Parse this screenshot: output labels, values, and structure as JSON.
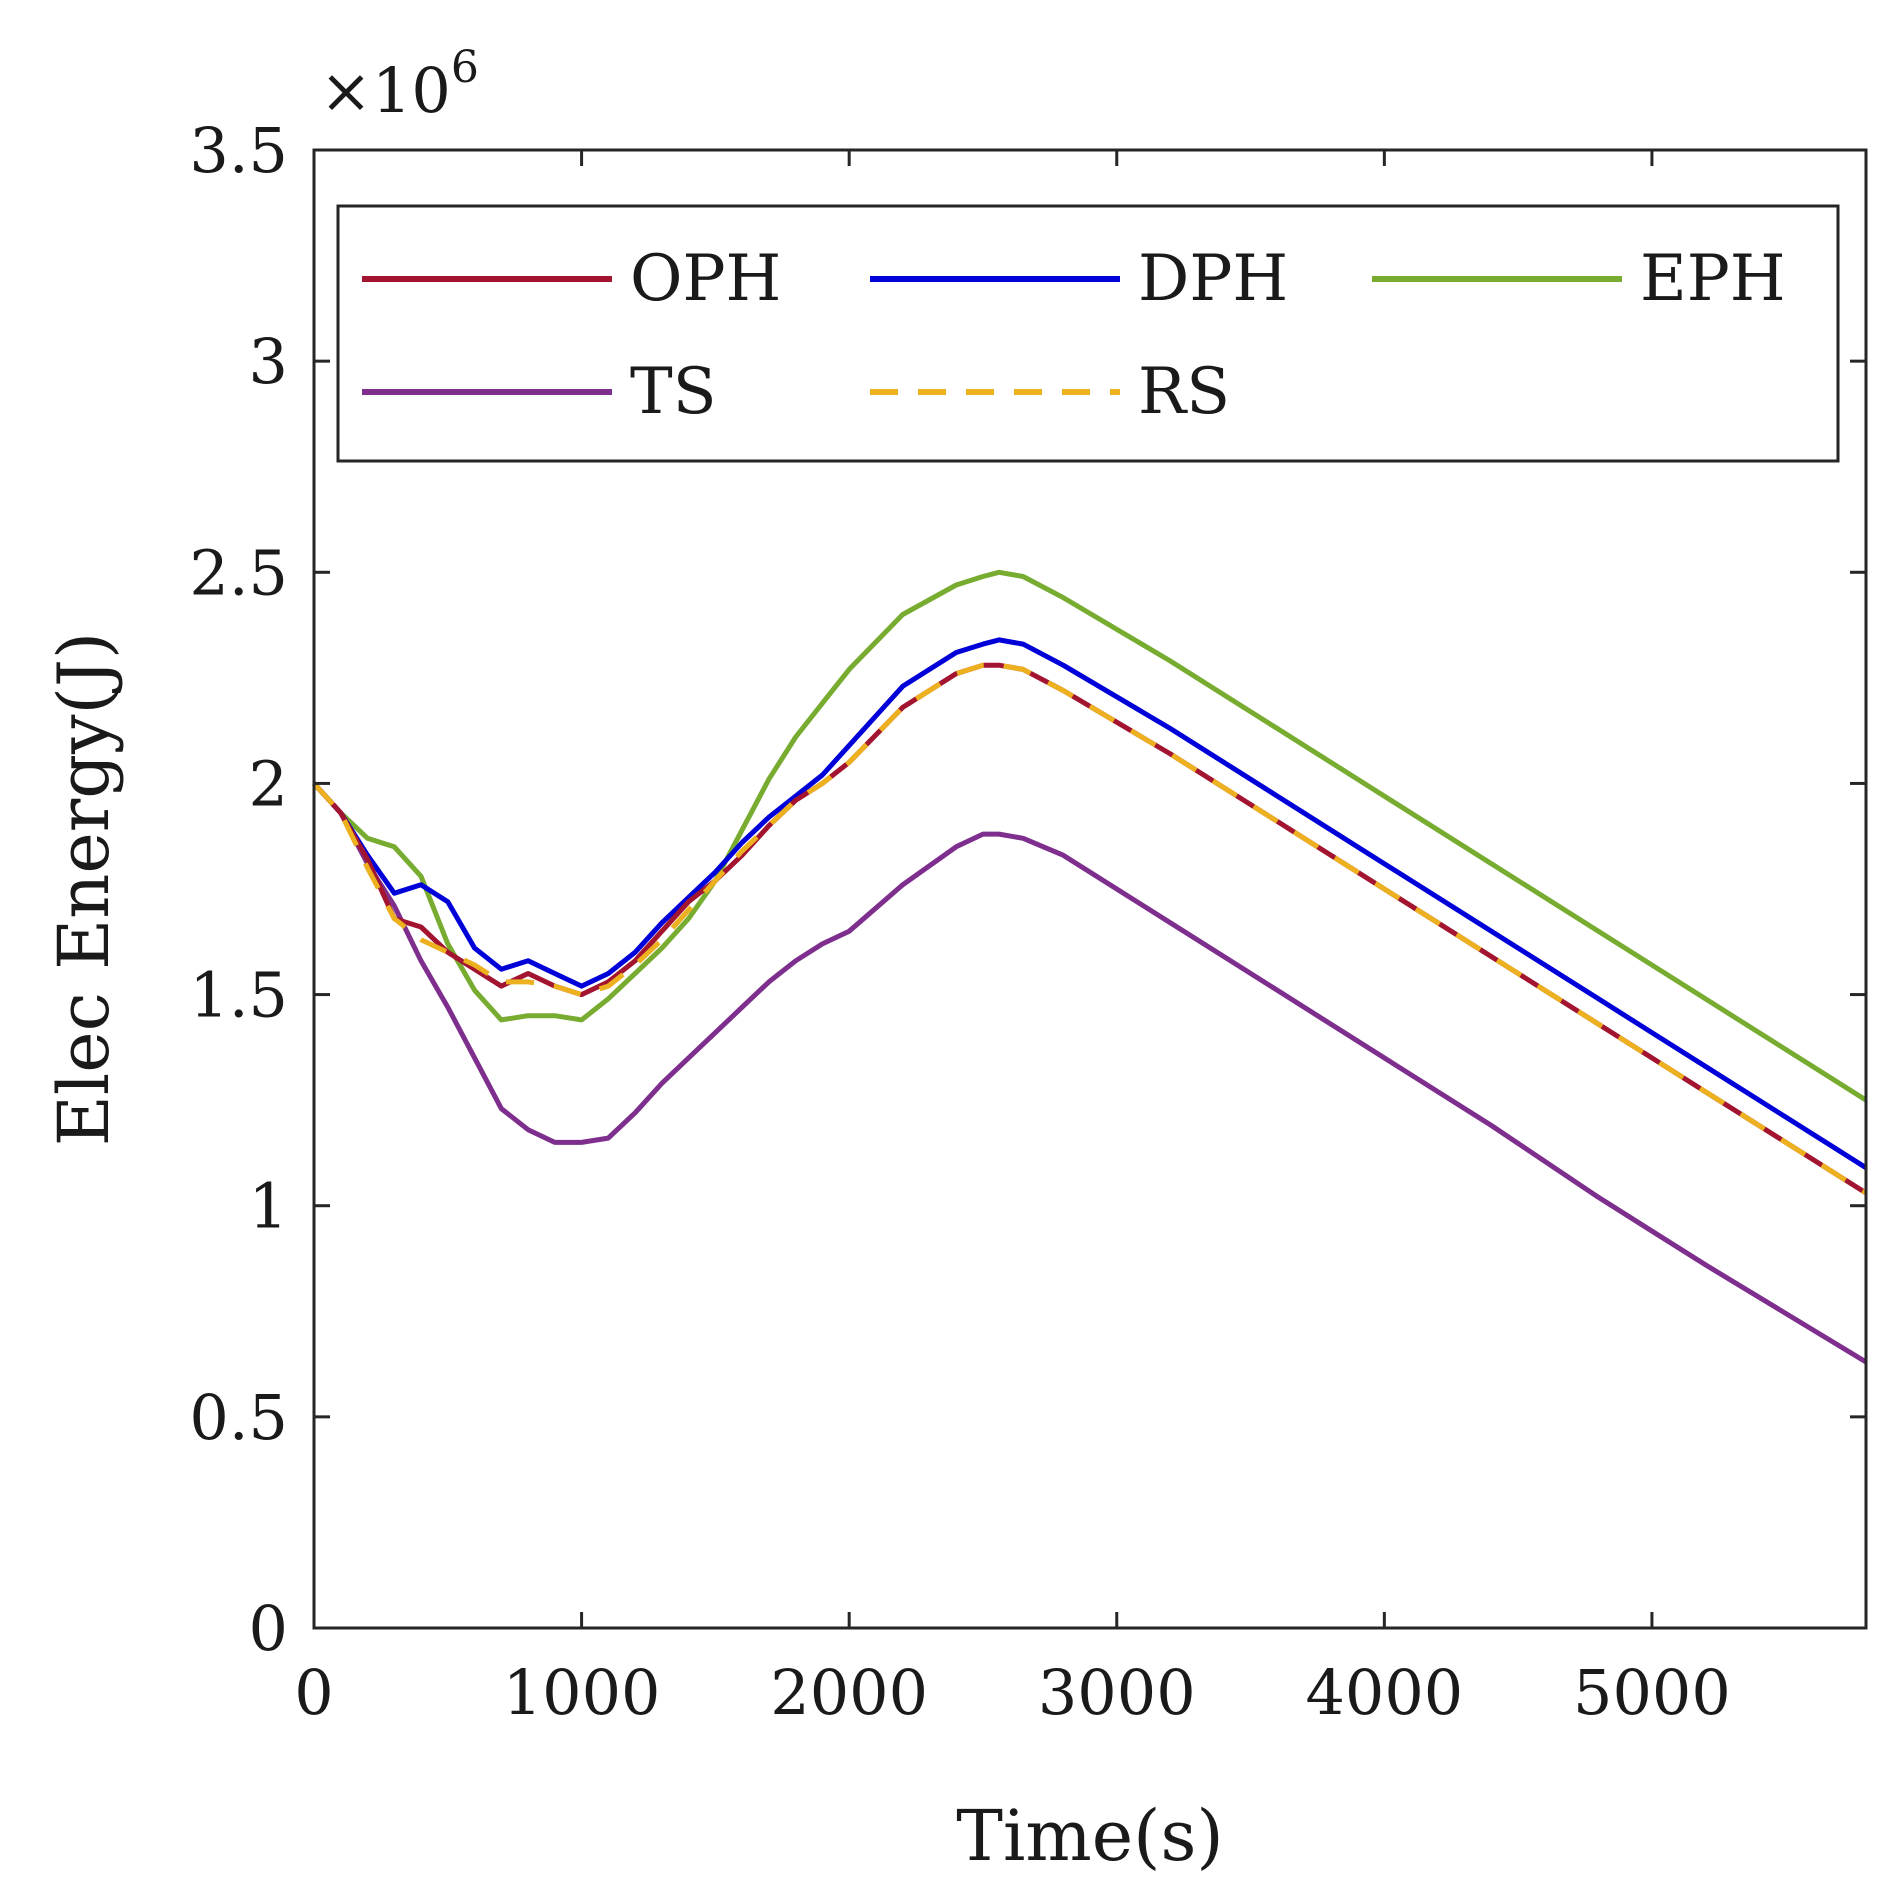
{
  "chart_data": {
    "type": "line",
    "title": "",
    "xlabel": "Time(s)",
    "ylabel": "Elec Energy(J)",
    "xlim": [
      0,
      5800
    ],
    "ylim": [
      0,
      3.5
    ],
    "y_multiplier": {
      "base": "×10",
      "exponent": "6"
    },
    "x_ticks": [
      0,
      1000,
      2000,
      3000,
      4000,
      5000
    ],
    "y_ticks": [
      0,
      0.5,
      1,
      1.5,
      2,
      2.5,
      3,
      3.5
    ],
    "x_tick_labels": [
      "0",
      "1000",
      "2000",
      "3000",
      "4000",
      "5000"
    ],
    "y_tick_labels": [
      "0",
      "0.5",
      "1",
      "1.5",
      "2",
      "2.5",
      "3",
      "3.5"
    ],
    "legend_position": "top",
    "series": [
      {
        "name": "OPH",
        "color": "#A2142F",
        "dash": "solid",
        "x": [
          0,
          100,
          200,
          300,
          400,
          500,
          600,
          700,
          800,
          900,
          1000,
          1100,
          1200,
          1300,
          1400,
          1500,
          1600,
          1700,
          1800,
          1900,
          2000,
          2200,
          2400,
          2500,
          2560,
          2650,
          2800,
          3200,
          3600,
          4000,
          4400,
          4800,
          5200,
          5800
        ],
        "y": [
          2.0,
          1.93,
          1.82,
          1.68,
          1.66,
          1.6,
          1.56,
          1.52,
          1.55,
          1.52,
          1.5,
          1.53,
          1.58,
          1.65,
          1.72,
          1.77,
          1.83,
          1.9,
          1.96,
          2.0,
          2.05,
          2.18,
          2.26,
          2.28,
          2.28,
          2.27,
          2.22,
          2.07,
          1.91,
          1.75,
          1.59,
          1.43,
          1.27,
          1.03
        ]
      },
      {
        "name": "DPH",
        "color": "#0000D8",
        "dash": "solid",
        "x": [
          0,
          100,
          200,
          300,
          400,
          500,
          600,
          700,
          800,
          900,
          1000,
          1100,
          1200,
          1300,
          1400,
          1500,
          1600,
          1700,
          1800,
          1900,
          2000,
          2200,
          2400,
          2500,
          2560,
          2650,
          2800,
          3200,
          3600,
          4000,
          4400,
          4800,
          5200,
          5800
        ],
        "y": [
          2.0,
          1.93,
          1.83,
          1.74,
          1.76,
          1.72,
          1.61,
          1.56,
          1.58,
          1.55,
          1.52,
          1.55,
          1.6,
          1.67,
          1.73,
          1.79,
          1.86,
          1.92,
          1.97,
          2.02,
          2.09,
          2.23,
          2.31,
          2.33,
          2.34,
          2.33,
          2.28,
          2.13,
          1.97,
          1.81,
          1.65,
          1.49,
          1.33,
          1.09
        ]
      },
      {
        "name": "EPH",
        "color": "#77AC30",
        "dash": "solid",
        "x": [
          0,
          100,
          200,
          300,
          400,
          500,
          600,
          700,
          800,
          900,
          1000,
          1100,
          1200,
          1300,
          1400,
          1500,
          1600,
          1700,
          1800,
          1900,
          2000,
          2200,
          2400,
          2500,
          2560,
          2650,
          2800,
          3200,
          3600,
          4000,
          4400,
          4800,
          5200,
          5800
        ],
        "y": [
          2.0,
          1.93,
          1.87,
          1.85,
          1.78,
          1.62,
          1.51,
          1.44,
          1.45,
          1.45,
          1.44,
          1.49,
          1.55,
          1.61,
          1.68,
          1.77,
          1.89,
          2.01,
          2.11,
          2.19,
          2.27,
          2.4,
          2.47,
          2.49,
          2.5,
          2.49,
          2.44,
          2.29,
          2.13,
          1.97,
          1.81,
          1.65,
          1.49,
          1.25
        ]
      },
      {
        "name": "TS",
        "color": "#7E2F8E",
        "dash": "solid",
        "x": [
          0,
          100,
          200,
          300,
          400,
          500,
          600,
          700,
          800,
          900,
          1000,
          1100,
          1200,
          1300,
          1400,
          1500,
          1600,
          1700,
          1800,
          1900,
          2000,
          2200,
          2400,
          2500,
          2560,
          2650,
          2800,
          3200,
          3600,
          4000,
          4400,
          4800,
          5200,
          5800
        ],
        "y": [
          2.0,
          1.93,
          1.81,
          1.71,
          1.58,
          1.47,
          1.35,
          1.23,
          1.18,
          1.15,
          1.15,
          1.16,
          1.22,
          1.29,
          1.35,
          1.41,
          1.47,
          1.53,
          1.58,
          1.62,
          1.65,
          1.76,
          1.85,
          1.88,
          1.88,
          1.87,
          1.83,
          1.67,
          1.51,
          1.35,
          1.19,
          1.02,
          0.86,
          0.63
        ]
      },
      {
        "name": "RS",
        "color": "#EDB120",
        "dash": "dashed",
        "x": [
          0,
          100,
          200,
          300,
          400,
          500,
          600,
          700,
          800,
          900,
          1000,
          1100,
          1200,
          1300,
          1400,
          1500,
          1600,
          1700,
          1800,
          1900,
          2000,
          2200,
          2400,
          2500,
          2560,
          2650,
          2800,
          3200,
          3600,
          4000,
          4400,
          4800,
          5200,
          5800
        ],
        "y": [
          2.0,
          1.93,
          1.8,
          1.68,
          1.63,
          1.6,
          1.57,
          1.53,
          1.53,
          1.52,
          1.5,
          1.52,
          1.57,
          1.63,
          1.7,
          1.77,
          1.84,
          1.9,
          1.96,
          2.0,
          2.05,
          2.18,
          2.26,
          2.28,
          2.28,
          2.27,
          2.22,
          2.07,
          1.91,
          1.75,
          1.59,
          1.43,
          1.27,
          1.03
        ]
      }
    ]
  }
}
